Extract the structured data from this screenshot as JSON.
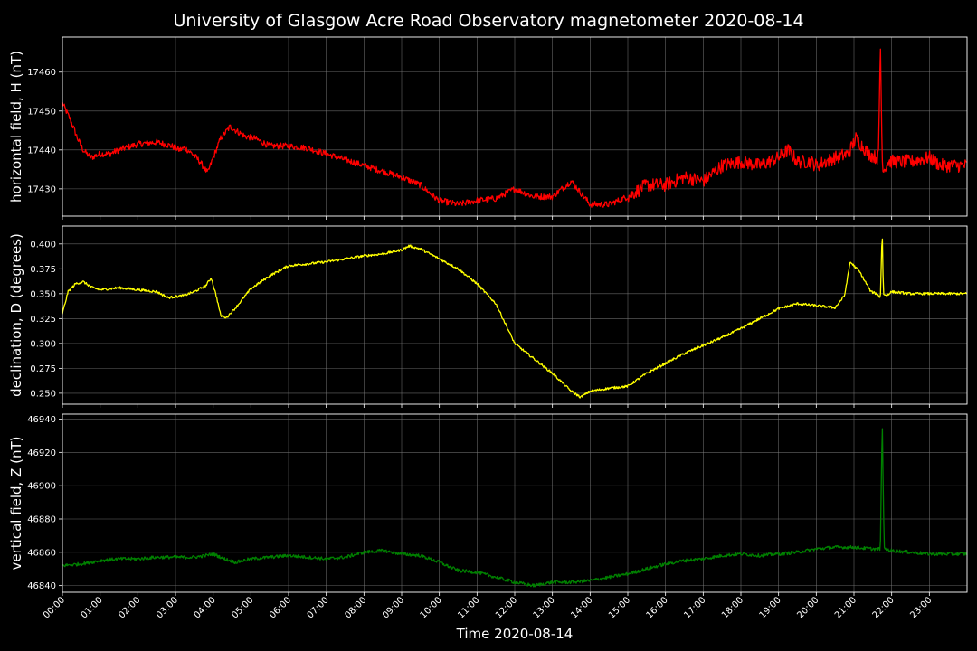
{
  "title": "University of Glasgow Acre Road Observatory magnetometer 2020-08-14",
  "colors": {
    "background": "#000000",
    "H": "#ff0000",
    "D": "#ffff00",
    "Z": "#008000",
    "grid": "#808080",
    "axes": "#ffffff"
  },
  "chart_data": {
    "type": "line",
    "title": "University of Glasgow Acre Road Observatory magnetometer 2020-08-14",
    "xlabel": "Time 2020-08-14",
    "x_tick_labels": [
      "00:00",
      "01:00",
      "02:00",
      "03:00",
      "04:00",
      "05:00",
      "06:00",
      "07:00",
      "08:00",
      "09:00",
      "10:00",
      "11:00",
      "12:00",
      "13:00",
      "14:00",
      "15:00",
      "16:00",
      "17:00",
      "18:00",
      "19:00",
      "20:00",
      "21:00",
      "22:00",
      "23:00"
    ],
    "x_unit": "hours",
    "xlim": [
      0,
      24
    ],
    "grid": true,
    "panels": [
      {
        "name": "H",
        "ylabel": "horizontal field, H (nT)",
        "ylim": [
          17423,
          17469
        ],
        "yticks": [
          17430,
          17440,
          17450,
          17460
        ],
        "color": "#ff0000",
        "noise": 0.8,
        "x": [
          0,
          0.2,
          0.4,
          0.55,
          0.75,
          1.0,
          1.25,
          1.5,
          2.0,
          2.5,
          2.9,
          3.1,
          3.25,
          3.45,
          3.65,
          3.85,
          4.0,
          4.2,
          4.45,
          4.6,
          4.85,
          5.1,
          5.5,
          6.0,
          6.5,
          7.0,
          7.5,
          8.0,
          8.5,
          9.0,
          9.5,
          9.85,
          10.0,
          10.5,
          11.0,
          11.5,
          12.0,
          12.5,
          13.0,
          13.5,
          14.0,
          14.5,
          15.0,
          15.5,
          16.0,
          16.5,
          17.0,
          17.5,
          18.0,
          18.5,
          19.0,
          19.25,
          19.5,
          19.85,
          20.0,
          20.5,
          20.85,
          21.05,
          21.4,
          21.6,
          21.65,
          21.7,
          21.75,
          21.8,
          21.9,
          22.5,
          23.0,
          23.3,
          24.0
        ],
        "y": [
          17452,
          17448,
          17443,
          17440,
          17438,
          17439,
          17439,
          17440,
          17441.5,
          17442,
          17441,
          17440,
          17440.5,
          17439,
          17437,
          17434,
          17438,
          17443,
          17446,
          17445,
          17443.5,
          17443,
          17441,
          17441,
          17440.5,
          17439,
          17437.5,
          17436,
          17434.5,
          17433,
          17431,
          17428,
          17427,
          17426,
          17427,
          17427.5,
          17430,
          17428,
          17428,
          17432,
          17426,
          17426,
          17428,
          17431,
          17431,
          17433,
          17432,
          17436,
          17437,
          17436,
          17438,
          17440,
          17437,
          17437,
          17436,
          17438,
          17439,
          17443,
          17439,
          17438,
          17438,
          17468,
          17437,
          17435,
          17437,
          17437,
          17438,
          17436,
          17436
        ]
      },
      {
        "name": "D",
        "ylabel": "declination, D (degrees)",
        "ylim": [
          0.239,
          0.418
        ],
        "yticks": [
          0.25,
          0.275,
          0.3,
          0.325,
          0.35,
          0.375,
          0.4
        ],
        "tick_format": "0.000",
        "color": "#ffff00",
        "noise": 0.0012,
        "x": [
          0,
          0.15,
          0.35,
          0.55,
          0.8,
          1.0,
          1.5,
          2.0,
          2.5,
          2.8,
          3.2,
          3.5,
          3.8,
          3.95,
          4.1,
          4.2,
          4.35,
          4.6,
          5.0,
          5.5,
          6.0,
          6.5,
          7.0,
          7.5,
          8.0,
          8.5,
          9.0,
          9.2,
          9.5,
          10.0,
          10.5,
          11.0,
          11.5,
          12.0,
          12.5,
          13.0,
          13.5,
          13.75,
          14.0,
          14.5,
          15.0,
          15.5,
          16.0,
          16.5,
          17.0,
          17.5,
          18.0,
          18.5,
          19.0,
          19.5,
          20.0,
          20.5,
          20.75,
          20.9,
          21.05,
          21.15,
          21.3,
          21.45,
          21.6,
          21.7,
          21.75,
          21.78,
          21.85,
          22.0,
          22.5,
          23.0,
          24.0
        ],
        "y": [
          0.33,
          0.352,
          0.36,
          0.362,
          0.356,
          0.354,
          0.356,
          0.354,
          0.352,
          0.346,
          0.348,
          0.352,
          0.358,
          0.366,
          0.345,
          0.328,
          0.326,
          0.336,
          0.355,
          0.368,
          0.378,
          0.38,
          0.382,
          0.385,
          0.388,
          0.39,
          0.394,
          0.398,
          0.395,
          0.385,
          0.375,
          0.36,
          0.34,
          0.3,
          0.285,
          0.27,
          0.252,
          0.246,
          0.252,
          0.255,
          0.257,
          0.27,
          0.28,
          0.29,
          0.298,
          0.306,
          0.315,
          0.325,
          0.335,
          0.34,
          0.338,
          0.336,
          0.348,
          0.382,
          0.376,
          0.372,
          0.362,
          0.352,
          0.35,
          0.346,
          0.415,
          0.35,
          0.348,
          0.352,
          0.35,
          0.35,
          0.35
        ]
      },
      {
        "name": "Z",
        "ylabel": "vertical field, Z (nT)",
        "ylim": [
          46836,
          46943
        ],
        "yticks": [
          46840,
          46860,
          46880,
          46900,
          46920,
          46940
        ],
        "color": "#008000",
        "noise": 1.0,
        "x": [
          0,
          0.5,
          1.0,
          1.5,
          2.0,
          2.5,
          3.0,
          3.5,
          3.8,
          4.0,
          4.3,
          4.6,
          5.0,
          5.5,
          6.0,
          6.5,
          7.0,
          7.5,
          8.0,
          8.5,
          9.0,
          9.5,
          10.0,
          10.5,
          11.0,
          11.5,
          12.0,
          12.5,
          13.0,
          13.5,
          14.0,
          14.5,
          15.0,
          15.5,
          16.0,
          16.5,
          17.0,
          17.5,
          18.0,
          18.5,
          19.0,
          19.5,
          20.0,
          20.5,
          21.0,
          21.5,
          21.7,
          21.75,
          21.8,
          22.0,
          22.5,
          23.0,
          24.0
        ],
        "y": [
          46852,
          46853,
          46855,
          46856,
          46856,
          46857,
          46857,
          46857,
          46858,
          46859,
          46856,
          46854,
          46856,
          46857,
          46858,
          46857,
          46856,
          46857,
          46860,
          46861,
          46859,
          46858,
          46854,
          46849,
          46848,
          46845,
          46842,
          46840,
          46842,
          46842,
          46843,
          46845,
          46847,
          46850,
          46853,
          46855,
          46856,
          46858,
          46859,
          46858,
          46859,
          46860,
          46862,
          46863,
          46863,
          46862,
          46862,
          46940,
          46862,
          46861,
          46860,
          46859,
          46859
        ]
      }
    ]
  }
}
